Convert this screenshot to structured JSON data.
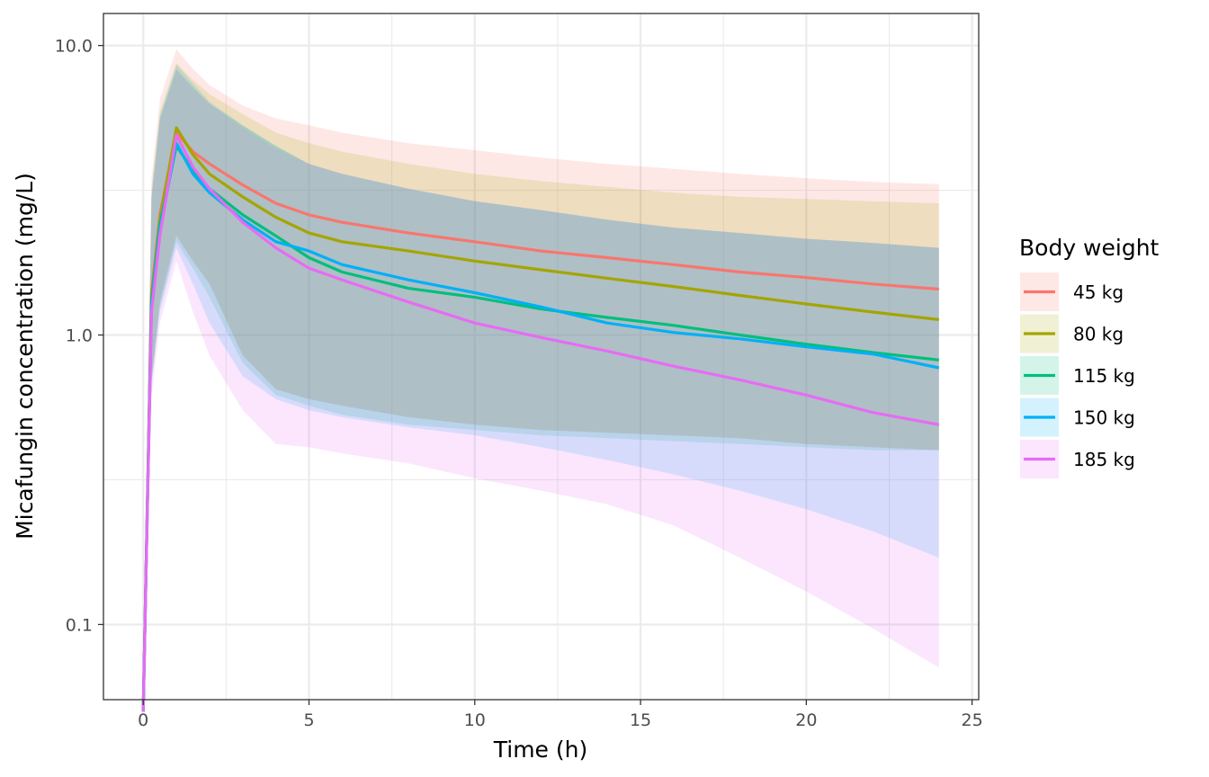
{
  "chart_data": {
    "type": "line",
    "title": "",
    "xlabel": "Time (h)",
    "ylabel": "Micafungin concentration (mg/L)",
    "y_scale": "log10",
    "xlim": [
      -1.2,
      25.2
    ],
    "ylim": [
      0.055,
      12.9
    ],
    "x_ticks": [
      0,
      5,
      10,
      15,
      20,
      25
    ],
    "x_tick_labels": [
      "0",
      "5",
      "10",
      "15",
      "20",
      "25"
    ],
    "y_ticks": [
      0.1,
      1.0,
      10.0
    ],
    "y_tick_labels": [
      "0.1",
      "1.0",
      "10.0"
    ],
    "grid": true,
    "legend": {
      "title": "Body weight",
      "position": "right"
    },
    "x": [
      0,
      0.25,
      0.5,
      1,
      1.5,
      2,
      3,
      4,
      5,
      6,
      8,
      10,
      12,
      14,
      16,
      18,
      20,
      22,
      24
    ],
    "series": [
      {
        "name": "45 kg",
        "color": "#F8766D",
        "values": [
          0.05,
          1.4,
          2.6,
          5.0,
          4.3,
          3.9,
          3.3,
          2.85,
          2.6,
          2.45,
          2.25,
          2.1,
          1.95,
          1.85,
          1.75,
          1.65,
          1.58,
          1.5,
          1.44
        ],
        "upper": [
          0.06,
          3.5,
          6.5,
          9.7,
          8.3,
          7.3,
          6.2,
          5.6,
          5.3,
          5.0,
          4.6,
          4.35,
          4.1,
          3.9,
          3.75,
          3.6,
          3.48,
          3.38,
          3.32
        ],
        "lower": [
          0.05,
          0.7,
          1.3,
          2.2,
          1.8,
          1.5,
          0.85,
          0.65,
          0.6,
          0.57,
          0.52,
          0.49,
          0.47,
          0.46,
          0.45,
          0.44,
          0.42,
          0.41,
          0.4
        ]
      },
      {
        "name": "80 kg",
        "color": "#A3A500",
        "values": [
          0.05,
          1.35,
          2.5,
          5.2,
          4.2,
          3.6,
          3.0,
          2.55,
          2.25,
          2.1,
          1.95,
          1.8,
          1.68,
          1.57,
          1.47,
          1.37,
          1.28,
          1.2,
          1.13
        ],
        "upper": [
          0.06,
          3.2,
          5.9,
          8.7,
          7.6,
          6.8,
          5.8,
          5.0,
          4.6,
          4.3,
          3.9,
          3.6,
          3.4,
          3.25,
          3.1,
          3.0,
          2.95,
          2.9,
          2.85
        ],
        "lower": [
          0.05,
          0.7,
          1.3,
          2.2,
          1.8,
          1.5,
          0.85,
          0.65,
          0.6,
          0.57,
          0.52,
          0.49,
          0.47,
          0.46,
          0.45,
          0.44,
          0.42,
          0.41,
          0.4
        ]
      },
      {
        "name": "115 kg",
        "color": "#00BF7D",
        "values": [
          0.05,
          1.3,
          2.4,
          4.5,
          3.7,
          3.2,
          2.6,
          2.2,
          1.85,
          1.65,
          1.45,
          1.35,
          1.23,
          1.15,
          1.08,
          1.0,
          0.93,
          0.87,
          0.82
        ],
        "upper": [
          0.06,
          3.0,
          5.6,
          8.3,
          7.2,
          6.3,
          5.3,
          4.5,
          3.9,
          3.6,
          3.2,
          2.9,
          2.7,
          2.5,
          2.35,
          2.25,
          2.15,
          2.08,
          2.0
        ],
        "lower": [
          0.05,
          0.68,
          1.25,
          2.1,
          1.7,
          1.35,
          0.8,
          0.62,
          0.57,
          0.53,
          0.49,
          0.47,
          0.45,
          0.44,
          0.43,
          0.42,
          0.41,
          0.4,
          0.4
        ]
      },
      {
        "name": "150 kg",
        "color": "#00B0F6",
        "values": [
          0.05,
          1.25,
          2.3,
          4.6,
          3.6,
          3.1,
          2.5,
          2.1,
          1.95,
          1.75,
          1.55,
          1.4,
          1.25,
          1.1,
          1.02,
          0.97,
          0.91,
          0.86,
          0.77
        ],
        "upper": [
          0.06,
          3.0,
          5.7,
          8.6,
          7.4,
          6.4,
          5.3,
          4.5,
          3.9,
          3.6,
          3.2,
          2.9,
          2.7,
          2.5,
          2.35,
          2.25,
          2.15,
          2.08,
          2.0
        ],
        "lower": [
          0.05,
          0.68,
          1.2,
          2.0,
          1.5,
          1.1,
          0.72,
          0.6,
          0.55,
          0.52,
          0.48,
          0.45,
          0.41,
          0.37,
          0.33,
          0.29,
          0.25,
          0.21,
          0.17
        ]
      },
      {
        "name": "185 kg",
        "color": "#E76BF3",
        "values": [
          0.05,
          1.2,
          2.2,
          4.9,
          3.8,
          3.2,
          2.45,
          2.0,
          1.7,
          1.55,
          1.3,
          1.1,
          0.98,
          0.88,
          0.78,
          0.7,
          0.62,
          0.54,
          0.49
        ],
        "upper": [
          0.06,
          2.9,
          5.5,
          8.2,
          7.1,
          6.3,
          5.2,
          4.4,
          3.9,
          3.6,
          3.2,
          2.9,
          2.7,
          2.5,
          2.35,
          2.25,
          2.15,
          2.08,
          2.0
        ],
        "lower": [
          0.05,
          0.6,
          1.1,
          1.8,
          1.2,
          0.85,
          0.55,
          0.42,
          0.41,
          0.39,
          0.36,
          0.32,
          0.29,
          0.26,
          0.22,
          0.17,
          0.13,
          0.097,
          0.071
        ]
      }
    ]
  }
}
